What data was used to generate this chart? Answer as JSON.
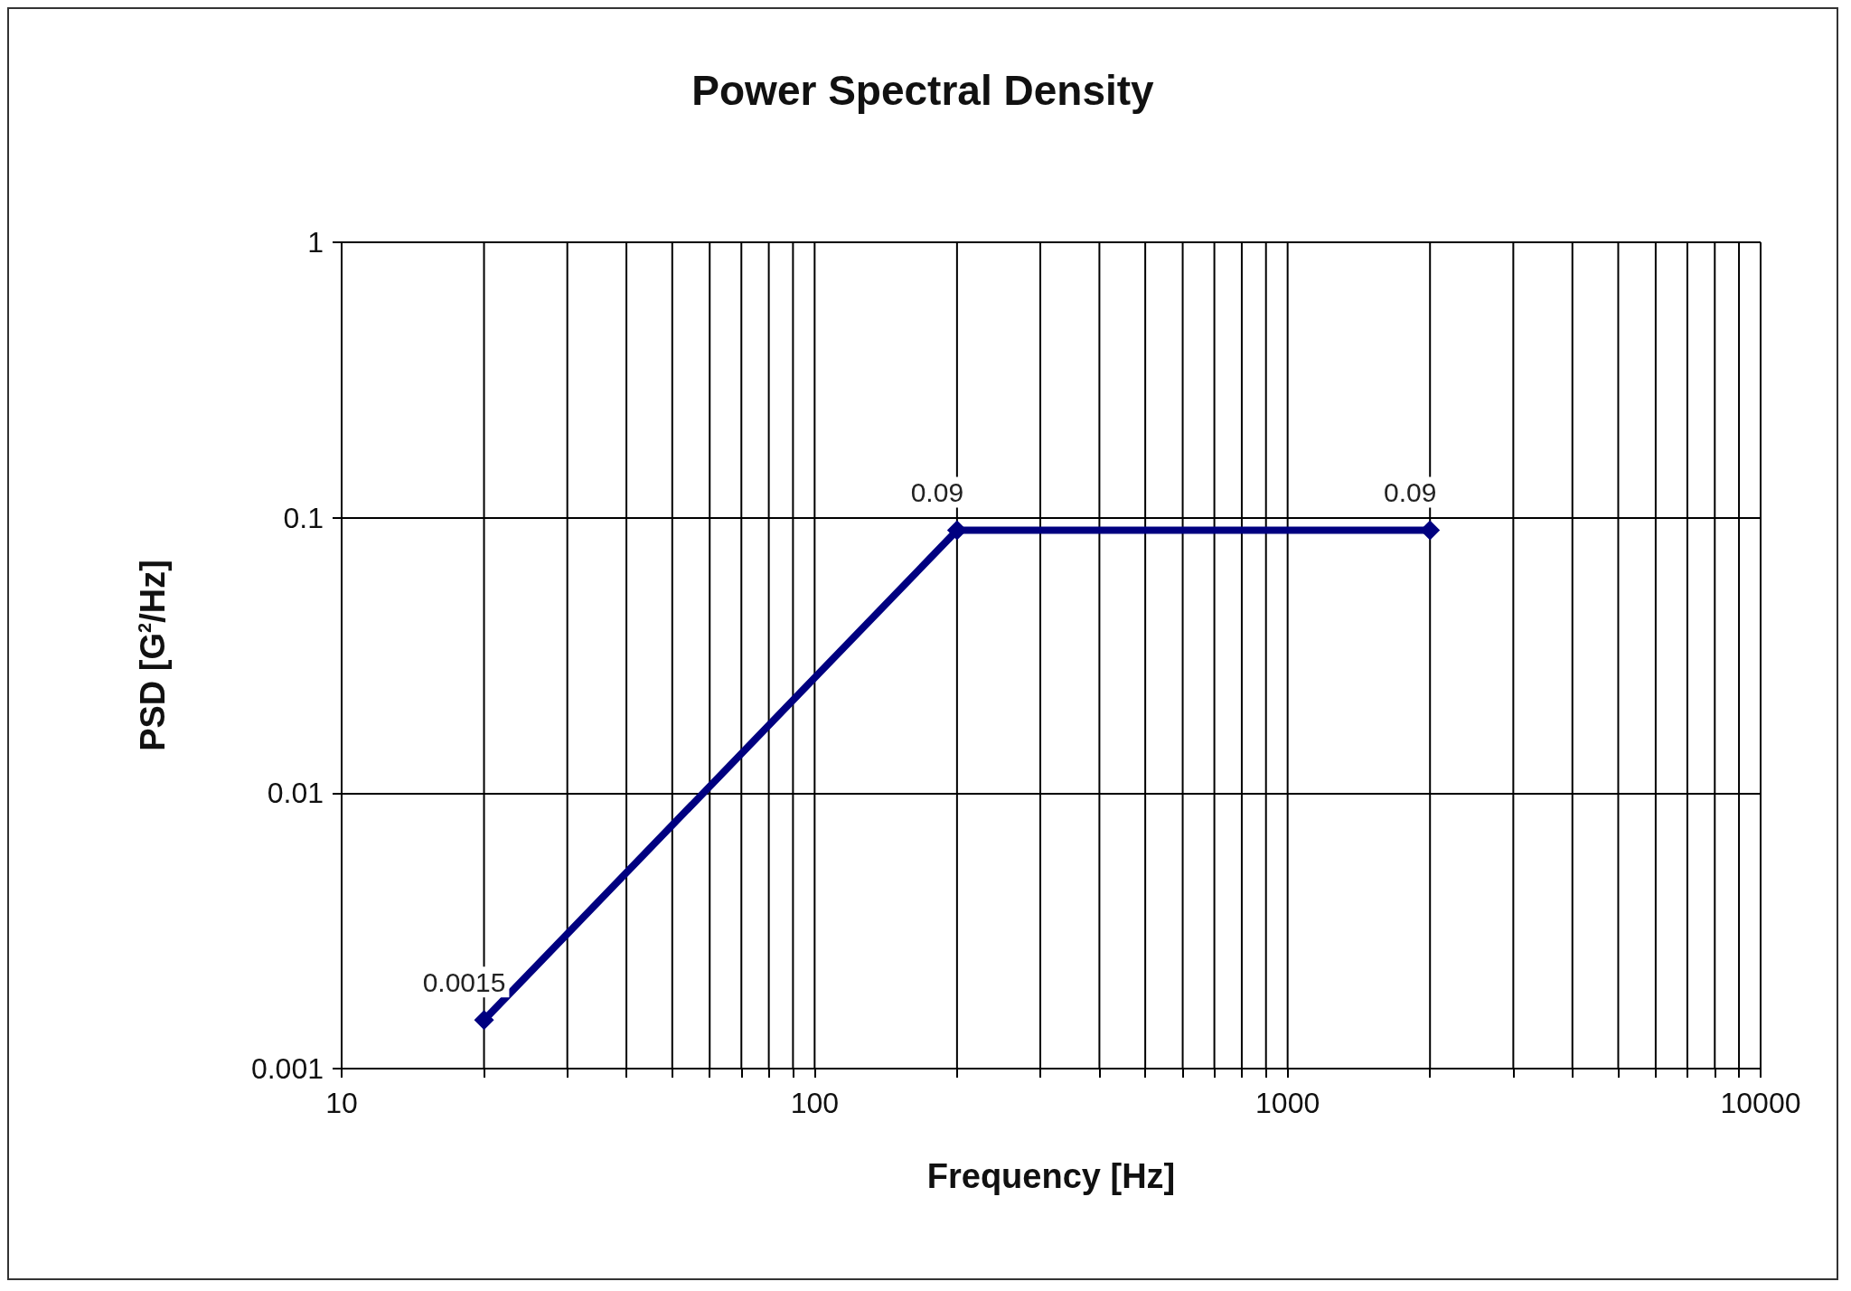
{
  "chart_data": {
    "type": "line",
    "title": "Power Spectral Density",
    "xlabel": "Frequency [Hz]",
    "ylabel": "PSD [G$^{2}$/Hz]",
    "x": [
      20,
      200,
      2000
    ],
    "series": [
      {
        "color": "#000080",
        "values": [
          0.0015,
          0.09,
          0.09
        ]
      }
    ],
    "log": "xy",
    "xlim": [
      10,
      10000
    ],
    "ylim": [
      0.001,
      1
    ],
    "xticks": [
      10,
      {
        "value": 20,
        "label": null
      },
      {
        "value": 30,
        "label": null
      },
      {
        "value": 40,
        "label": null
      },
      {
        "value": 50,
        "label": null
      },
      {
        "value": 60,
        "label": null
      },
      {
        "value": 70,
        "label": null
      },
      {
        "value": 80,
        "label": null
      },
      {
        "value": 90,
        "label": null
      },
      100,
      {
        "value": 200,
        "label": null
      },
      {
        "value": 300,
        "label": null
      },
      {
        "value": 400,
        "label": null
      },
      {
        "value": 500,
        "label": null
      },
      {
        "value": 600,
        "label": null
      },
      {
        "value": 700,
        "label": null
      },
      {
        "value": 800,
        "label": null
      },
      {
        "value": 900,
        "label": null
      },
      1000,
      {
        "value": 2000,
        "label": null
      },
      {
        "value": 3000,
        "label": null
      },
      {
        "value": 4000,
        "label": null
      },
      {
        "value": 5000,
        "label": null
      },
      {
        "value": 6000,
        "label": null
      },
      {
        "value": 7000,
        "label": null
      },
      {
        "value": 8000,
        "label": null
      },
      {
        "value": 9000,
        "label": null
      },
      10000
    ],
    "yticks": [
      0.001,
      0.01,
      0.1,
      1
    ],
    "grid": true,
    "marker": "diamond",
    "line_style": "solid",
    "data_labels": true
  }
}
